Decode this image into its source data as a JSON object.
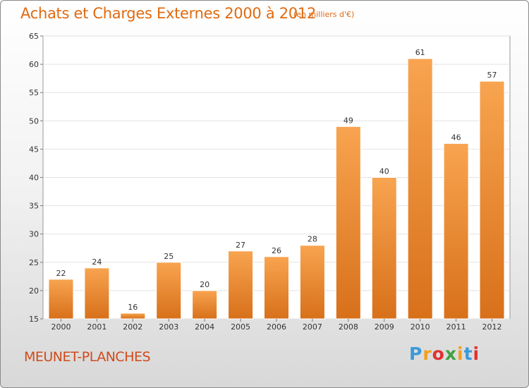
{
  "chart_data": {
    "type": "bar",
    "title": "Achats et Charges Externes 2000 à 2012",
    "subtitle": "(en milliers d'€)",
    "categories": [
      "2000",
      "2001",
      "2002",
      "2003",
      "2004",
      "2005",
      "2006",
      "2007",
      "2008",
      "2009",
      "2010",
      "2011",
      "2012"
    ],
    "values": [
      22,
      24,
      16,
      25,
      20,
      27,
      26,
      28,
      49,
      40,
      61,
      46,
      57
    ],
    "value_labels": [
      "22",
      "24",
      "16",
      "25",
      "20",
      "27",
      "26",
      "28",
      "49",
      "40",
      "61",
      "46",
      "57"
    ],
    "ylim": [
      15,
      65
    ],
    "yticks": [
      15,
      20,
      25,
      30,
      35,
      40,
      45,
      50,
      55,
      60,
      65
    ],
    "ytick_labels": [
      "15",
      "20",
      "25",
      "30",
      "35",
      "40",
      "45",
      "50",
      "55",
      "60",
      "65"
    ],
    "grid": true,
    "bar_color": "#f08a2c",
    "xlabel": "",
    "ylabel": ""
  },
  "commune": "MEUNET-PLANCHES",
  "logo": {
    "text": "Proxiti",
    "letters": [
      "P",
      "r",
      "o",
      "x",
      "i",
      "t",
      "i"
    ],
    "colors": [
      "#3a9ad9",
      "#f0a020",
      "#e03030",
      "#40a040",
      "#f0a020",
      "#3a9ad9",
      "#e03030"
    ]
  }
}
